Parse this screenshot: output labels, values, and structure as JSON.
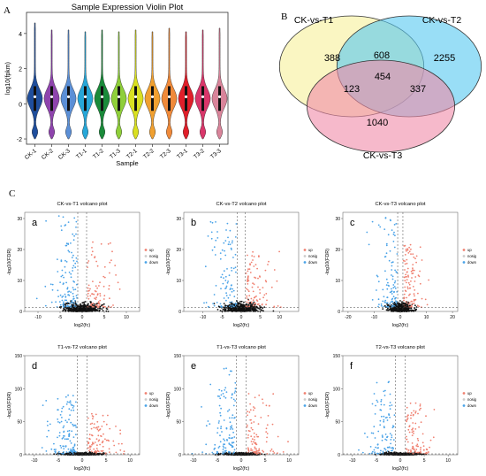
{
  "panel_labels": {
    "a": "A",
    "b": "B",
    "c": "C"
  },
  "chart_data": [
    {
      "type": "violin",
      "title": "Sample Expression Violin Plot",
      "xlabel": "Sample",
      "ylabel": "log10(fpkm)",
      "ylim": [
        -2.3,
        5.2
      ],
      "yticks": [
        -2,
        0,
        2,
        4
      ],
      "categories": [
        "CK-1",
        "CK-2",
        "CK-3",
        "T1-1",
        "T1-2",
        "T1-3",
        "T2-1",
        "T2-2",
        "T2-3",
        "T3-1",
        "T3-2",
        "T3-3"
      ],
      "colors": [
        "#1f4e9c",
        "#8e44ad",
        "#5b8fd6",
        "#27a7d8",
        "#1a8a3a",
        "#8fcf3a",
        "#d9e021",
        "#f0a030",
        "#f08a3a",
        "#e01f2a",
        "#d9366a",
        "#d9849a"
      ],
      "medians": [
        0.4,
        0.4,
        0.4,
        0.4,
        0.4,
        0.4,
        0.4,
        0.4,
        0.4,
        0.4,
        0.4,
        0.4
      ],
      "ymin": [
        -2,
        -2,
        -2,
        -2,
        -2,
        -2,
        -2,
        -2,
        -2,
        -2,
        -2,
        -2
      ],
      "ymax": [
        4.6,
        4.2,
        4.2,
        4.1,
        4.2,
        4.1,
        4.2,
        4.1,
        4.3,
        4.1,
        4.2,
        4.3
      ]
    },
    {
      "type": "venn",
      "sets": [
        "CK-vs-T1",
        "CK-vs-T2",
        "CK-vs-T3"
      ],
      "colors": [
        "#f7f09a",
        "#55c8f0",
        "#f08aa8"
      ],
      "regions": {
        "only_T1": 388,
        "only_T2": 2255,
        "only_T3": 1040,
        "T1_T2": 608,
        "T1_T3": 123,
        "T2_T3": 337,
        "all": 454
      }
    },
    {
      "type": "scatter",
      "title": "CK-vs-T1 volcano plot",
      "tag": "a",
      "xlabel": "log2(fc)",
      "ylabel": "-log10(FDR)",
      "xlim": [
        -13,
        13
      ],
      "ylim": [
        0,
        32
      ],
      "xticks": [
        -10,
        -5,
        0,
        5,
        10
      ],
      "yticks": [
        0,
        10,
        20,
        30
      ],
      "thresholds": {
        "fc": 1,
        "fdr": 1.3
      },
      "legend": [
        "up",
        "nosig",
        "down"
      ],
      "legend_colors": [
        "#f08070",
        "#cccccc",
        "#4aa3e8"
      ],
      "spread": 9,
      "height": 30
    },
    {
      "type": "scatter",
      "title": "CK-vs-T2 volcano plot",
      "tag": "b",
      "xlabel": "log2(fc)",
      "ylabel": "-log10(FDR)",
      "xlim": [
        -15,
        15
      ],
      "ylim": [
        0,
        32
      ],
      "xticks": [
        -10,
        -5,
        0,
        5,
        10
      ],
      "yticks": [
        0,
        10,
        20,
        30
      ],
      "thresholds": {
        "fc": 1,
        "fdr": 1.3
      },
      "legend": [
        "up",
        "nosig",
        "down"
      ],
      "legend_colors": [
        "#f08070",
        "#cccccc",
        "#4aa3e8"
      ],
      "spread": 10,
      "height": 28
    },
    {
      "type": "scatter",
      "title": "CK-vs-T3 volcano plot",
      "tag": "c",
      "xlabel": "log2(fc)",
      "ylabel": "-log10(FDR)",
      "xlim": [
        -22,
        22
      ],
      "ylim": [
        0,
        32
      ],
      "xticks": [
        -20,
        -10,
        0,
        10,
        20
      ],
      "yticks": [
        0,
        10,
        20,
        30
      ],
      "thresholds": {
        "fc": 1,
        "fdr": 1.3
      },
      "legend": [
        "up",
        "nosig",
        "down"
      ],
      "legend_colors": [
        "#f08070",
        "#cccccc",
        "#4aa3e8"
      ],
      "spread": 10,
      "height": 29
    },
    {
      "type": "scatter",
      "title": "T1-vs-T2 volcano plot",
      "tag": "d",
      "xlabel": "log2(fc)",
      "ylabel": "-log10(FDR)",
      "xlim": [
        -12,
        12
      ],
      "ylim": [
        0,
        150
      ],
      "xticks": [
        -10,
        -5,
        0,
        5,
        10
      ],
      "yticks": [
        0,
        50,
        100,
        150
      ],
      "thresholds": {
        "fc": 1,
        "fdr": 1.3
      },
      "legend": [
        "up",
        "nosig",
        "down"
      ],
      "legend_colors": [
        "#f08070",
        "#cccccc",
        "#4aa3e8"
      ],
      "spread": 8,
      "height": 90
    },
    {
      "type": "scatter",
      "title": "T1-vs-T3 volcano plot",
      "tag": "e",
      "xlabel": "log2(fc)",
      "ylabel": "-log10(FDR)",
      "xlim": [
        -12,
        12
      ],
      "ylim": [
        0,
        150
      ],
      "xticks": [
        -10,
        -5,
        0,
        5,
        10
      ],
      "yticks": [
        0,
        50,
        100,
        150
      ],
      "thresholds": {
        "fc": 1,
        "fdr": 1.3
      },
      "legend": [
        "up",
        "nosig",
        "down"
      ],
      "legend_colors": [
        "#f08070",
        "#cccccc",
        "#4aa3e8"
      ],
      "spread": 8,
      "height": 130
    },
    {
      "type": "scatter",
      "title": "T2-vs-T3 volcano plot",
      "tag": "f",
      "xlabel": "log2(fc)",
      "ylabel": "-log10(FDR)",
      "xlim": [
        -12,
        12
      ],
      "ylim": [
        0,
        150
      ],
      "xticks": [
        -10,
        -5,
        0,
        5,
        10
      ],
      "yticks": [
        0,
        50,
        100,
        150
      ],
      "thresholds": {
        "fc": 1,
        "fdr": 1.3
      },
      "legend": [
        "up",
        "nosig",
        "down"
      ],
      "legend_colors": [
        "#f08070",
        "#cccccc",
        "#4aa3e8"
      ],
      "spread": 8,
      "height": 110
    }
  ]
}
